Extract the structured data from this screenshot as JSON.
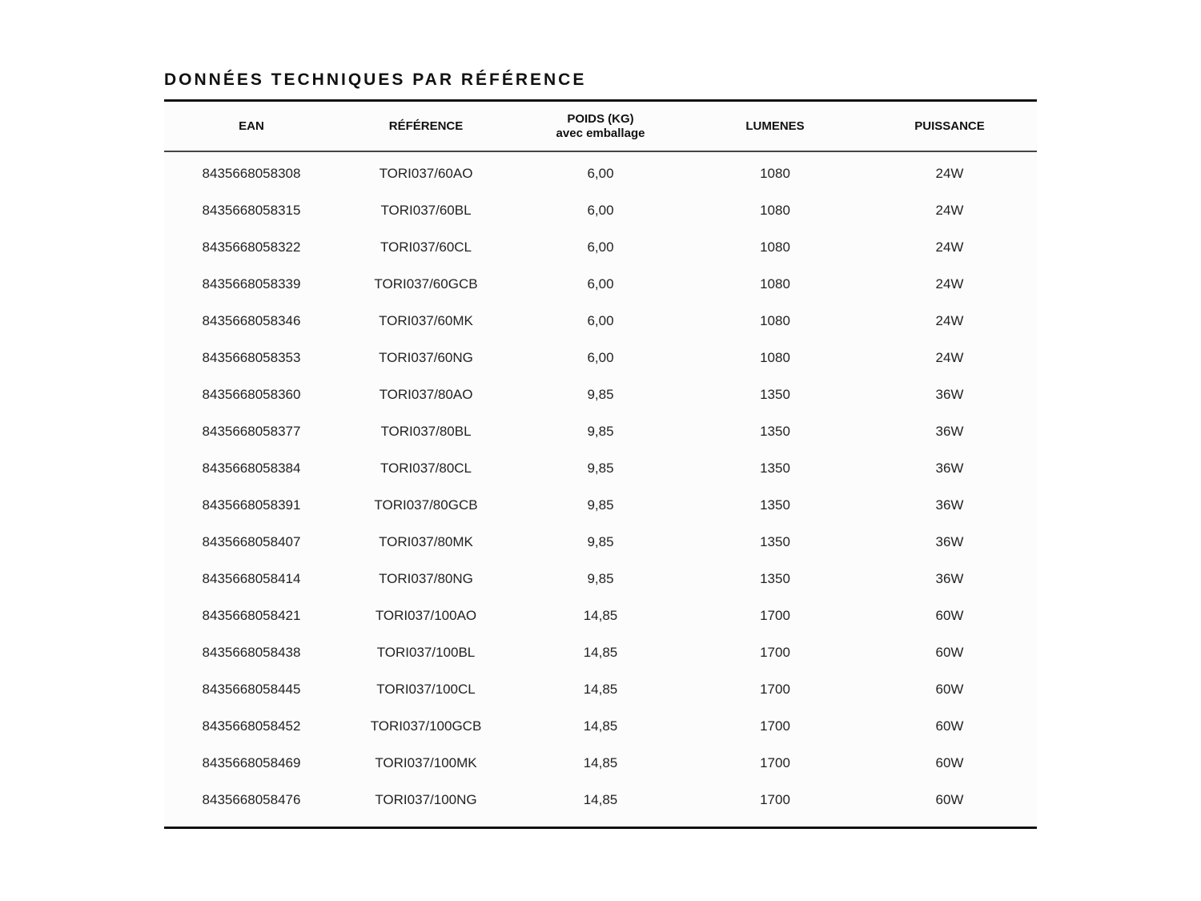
{
  "title": "DONNÉES TECHNIQUES PAR RÉFÉRENCE",
  "headers": {
    "ean": "EAN",
    "reference": "RÉFÉRENCE",
    "poids": "POIDS (KG)",
    "poids_sub": "avec emballage",
    "lumenes": "LUMENES",
    "puissance": "PUISSANCE"
  },
  "rows": [
    [
      "8435668058308",
      "TORI037/60AO",
      "6,00",
      "1080",
      "24W"
    ],
    [
      "8435668058315",
      "TORI037/60BL",
      "6,00",
      "1080",
      "24W"
    ],
    [
      "8435668058322",
      "TORI037/60CL",
      "6,00",
      "1080",
      "24W"
    ],
    [
      "8435668058339",
      "TORI037/60GCB",
      "6,00",
      "1080",
      "24W"
    ],
    [
      "8435668058346",
      "TORI037/60MK",
      "6,00",
      "1080",
      "24W"
    ],
    [
      "8435668058353",
      "TORI037/60NG",
      "6,00",
      "1080",
      "24W"
    ],
    [
      "8435668058360",
      "TORI037/80AO",
      "9,85",
      "1350",
      "36W"
    ],
    [
      "8435668058377",
      "TORI037/80BL",
      "9,85",
      "1350",
      "36W"
    ],
    [
      "8435668058384",
      "TORI037/80CL",
      "9,85",
      "1350",
      "36W"
    ],
    [
      "8435668058391",
      "TORI037/80GCB",
      "9,85",
      "1350",
      "36W"
    ],
    [
      "8435668058407",
      "TORI037/80MK",
      "9,85",
      "1350",
      "36W"
    ],
    [
      "8435668058414",
      "TORI037/80NG",
      "9,85",
      "1350",
      "36W"
    ],
    [
      "8435668058421",
      "TORI037/100AO",
      "14,85",
      "1700",
      "60W"
    ],
    [
      "8435668058438",
      "TORI037/100BL",
      "14,85",
      "1700",
      "60W"
    ],
    [
      "8435668058445",
      "TORI037/100CL",
      "14,85",
      "1700",
      "60W"
    ],
    [
      "8435668058452",
      "TORI037/100GCB",
      "14,85",
      "1700",
      "60W"
    ],
    [
      "8435668058469",
      "TORI037/100MK",
      "14,85",
      "1700",
      "60W"
    ],
    [
      "8435668058476",
      "TORI037/100NG",
      "14,85",
      "1700",
      "60W"
    ]
  ]
}
